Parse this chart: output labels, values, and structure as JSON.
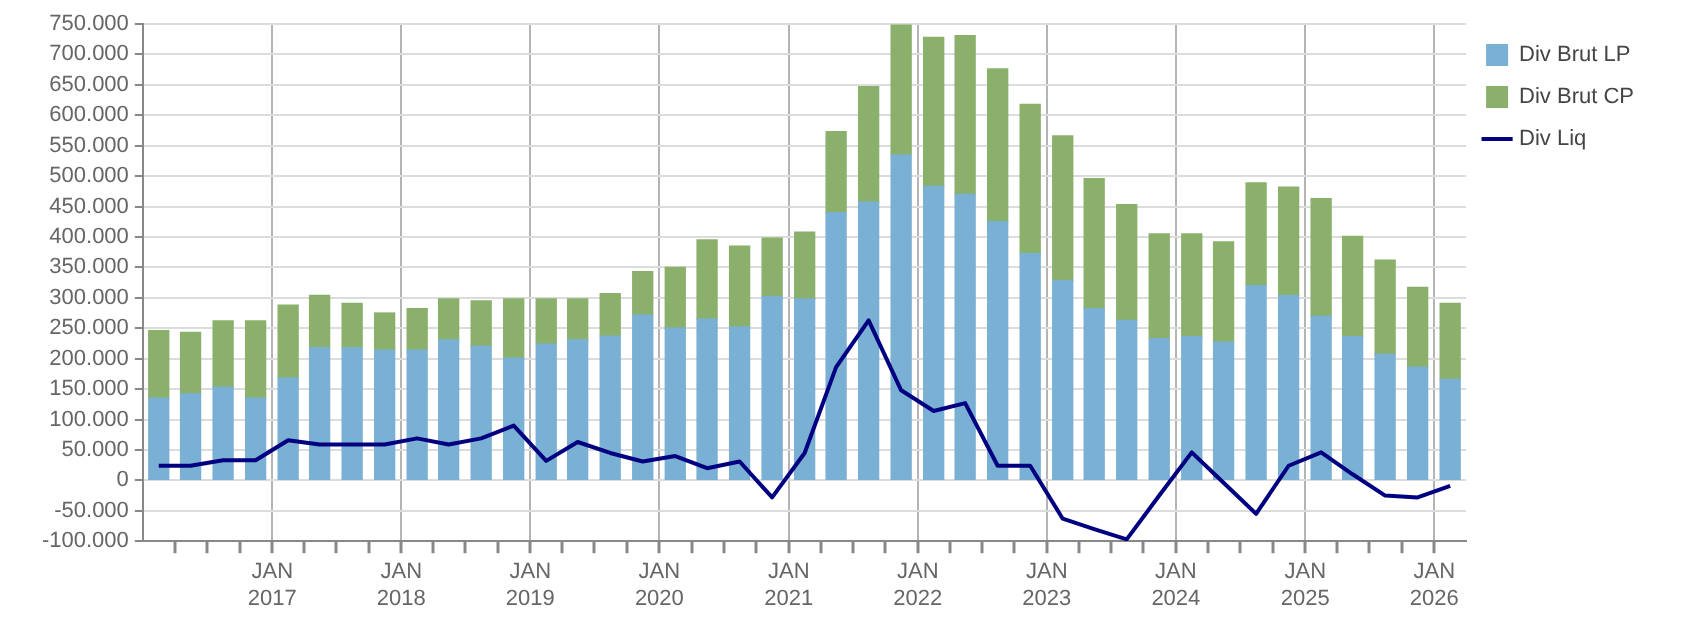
{
  "chart_data": {
    "type": "bar",
    "stacked": true,
    "x": [
      "2016-02-15",
      "2016-05-15",
      "2016-08-15",
      "2016-11-15",
      "2017-02-15",
      "2017-05-15",
      "2017-08-15",
      "2017-11-15",
      "2018-02-15",
      "2018-05-15",
      "2018-08-15",
      "2018-11-15",
      "2019-02-15",
      "2019-05-15",
      "2019-08-15",
      "2019-11-15",
      "2020-02-15",
      "2020-05-15",
      "2020-08-15",
      "2020-11-15",
      "2021-02-15",
      "2021-05-15",
      "2021-08-15",
      "2021-11-15",
      "2022-02-15",
      "2022-05-15",
      "2022-08-15",
      "2022-11-15",
      "2023-02-15",
      "2023-05-15",
      "2023-08-15",
      "2023-11-15",
      "2024-02-15",
      "2024-05-15",
      "2024-08-15",
      "2024-11-15",
      "2025-02-15",
      "2025-05-15",
      "2025-08-15",
      "2025-11-15",
      "2026-02-15"
    ],
    "series": [
      {
        "name": "Div Brut LP",
        "color": "#7ab0d3",
        "values": [
          135000,
          142000,
          153000,
          135000,
          168000,
          218000,
          218000,
          214000,
          214000,
          231000,
          220000,
          201000,
          224000,
          231000,
          237000,
          272000,
          250000,
          265000,
          252000,
          302000,
          298000,
          440000,
          457000,
          535000,
          483000,
          470000,
          425000,
          373000,
          328000,
          282000,
          263000,
          233000,
          236000,
          227000,
          320000,
          304000,
          270000,
          236000,
          207000,
          186000,
          166000
        ]
      },
      {
        "name": "Div Brut CP",
        "color": "#8ab06c",
        "values": [
          111000,
          101000,
          109000,
          127000,
          120000,
          86000,
          73000,
          61000,
          68000,
          67000,
          75000,
          97000,
          74000,
          67000,
          70000,
          71000,
          100000,
          130000,
          133000,
          96000,
          110000,
          133000,
          190000,
          213000,
          245000,
          261000,
          251000,
          245000,
          238000,
          214000,
          190000,
          172000,
          169000,
          165000,
          169000,
          178000,
          193000,
          165000,
          155000,
          131000,
          125000
        ]
      },
      {
        "name": "Div Liq",
        "type": "line",
        "color": "#000080",
        "values": [
          24000,
          24000,
          33000,
          33000,
          66000,
          59000,
          59000,
          59000,
          69000,
          59000,
          69000,
          90000,
          32000,
          63000,
          45000,
          31000,
          40000,
          20000,
          31000,
          -28000,
          45000,
          186000,
          263000,
          148000,
          114000,
          127000,
          24000,
          24000,
          -63000,
          -80000,
          -97000,
          -25000,
          46000,
          -4000,
          -55000,
          24000,
          46000,
          10000,
          -25000,
          -28000,
          -9000
        ]
      }
    ],
    "xlim": [
      "2016-01-01",
      "2026-04-01"
    ],
    "xticks": [
      {
        "value": "2016-04-01",
        "label": null
      },
      {
        "value": "2016-07-01",
        "label": null
      },
      {
        "value": "2016-10-01",
        "label": null
      },
      {
        "value": "2017-01-01",
        "label": "JAN\n2017"
      },
      {
        "value": "2017-04-01",
        "label": null
      },
      {
        "value": "2017-07-01",
        "label": null
      },
      {
        "value": "2017-10-01",
        "label": null
      },
      {
        "value": "2018-01-01",
        "label": "JAN\n2018"
      },
      {
        "value": "2018-04-01",
        "label": null
      },
      {
        "value": "2018-07-01",
        "label": null
      },
      {
        "value": "2018-10-01",
        "label": null
      },
      {
        "value": "2019-01-01",
        "label": "JAN\n2019"
      },
      {
        "value": "2019-04-01",
        "label": null
      },
      {
        "value": "2019-07-01",
        "label": null
      },
      {
        "value": "2019-10-01",
        "label": null
      },
      {
        "value": "2020-01-01",
        "label": "JAN\n2020"
      },
      {
        "value": "2020-04-01",
        "label": null
      },
      {
        "value": "2020-07-01",
        "label": null
      },
      {
        "value": "2020-10-01",
        "label": null
      },
      {
        "value": "2021-01-01",
        "label": "JAN\n2021"
      },
      {
        "value": "2021-04-01",
        "label": null
      },
      {
        "value": "2021-07-01",
        "label": null
      },
      {
        "value": "2021-10-01",
        "label": null
      },
      {
        "value": "2022-01-01",
        "label": "JAN\n2022"
      },
      {
        "value": "2022-04-01",
        "label": null
      },
      {
        "value": "2022-07-01",
        "label": null
      },
      {
        "value": "2022-10-01",
        "label": null
      },
      {
        "value": "2023-01-01",
        "label": "JAN\n2023"
      },
      {
        "value": "2023-04-01",
        "label": null
      },
      {
        "value": "2023-07-01",
        "label": null
      },
      {
        "value": "2023-10-01",
        "label": null
      },
      {
        "value": "2024-01-01",
        "label": "JAN\n2024"
      },
      {
        "value": "2024-04-01",
        "label": null
      },
      {
        "value": "2024-07-01",
        "label": null
      },
      {
        "value": "2024-10-01",
        "label": null
      },
      {
        "value": "2025-01-01",
        "label": "JAN\n2025"
      },
      {
        "value": "2025-04-01",
        "label": null
      },
      {
        "value": "2025-07-01",
        "label": null
      },
      {
        "value": "2025-10-01",
        "label": null
      },
      {
        "value": "2026-01-01",
        "label": "JAN\n2026"
      }
    ],
    "ylim": [
      -100000,
      750000
    ],
    "yticks": [
      {
        "value": -100000,
        "label": "-100.000"
      },
      {
        "value": -50000,
        "label": "-50.000"
      },
      {
        "value": 0,
        "label": "0"
      },
      {
        "value": 50000,
        "label": "50.000"
      },
      {
        "value": 100000,
        "label": "100.000"
      },
      {
        "value": 150000,
        "label": "150.000"
      },
      {
        "value": 200000,
        "label": "200.000"
      },
      {
        "value": 250000,
        "label": "250.000"
      },
      {
        "value": 300000,
        "label": "300.000"
      },
      {
        "value": 350000,
        "label": "350.000"
      },
      {
        "value": 400000,
        "label": "400.000"
      },
      {
        "value": 450000,
        "label": "450.000"
      },
      {
        "value": 500000,
        "label": "500.000"
      },
      {
        "value": 550000,
        "label": "550.000"
      },
      {
        "value": 600000,
        "label": "600.000"
      },
      {
        "value": 650000,
        "label": "650.000"
      },
      {
        "value": 700000,
        "label": "700.000"
      },
      {
        "value": 750000,
        "label": "750.000"
      }
    ],
    "grid": true,
    "legend": "top right",
    "marker": "none",
    "line_style": "solid"
  }
}
